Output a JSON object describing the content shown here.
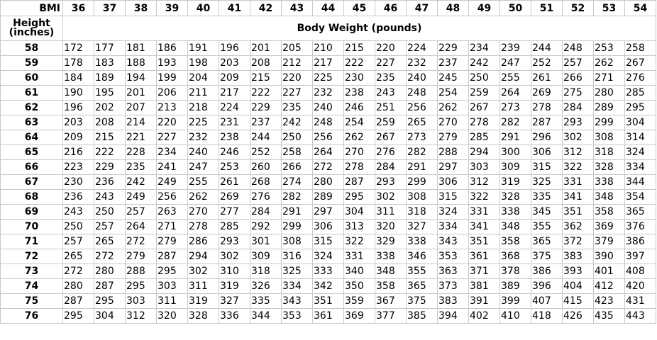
{
  "header": {
    "bmi_label": "BMI",
    "height_label_line1": "Height",
    "height_label_line2": "(inches)",
    "weight_label": "Body Weight (pounds)",
    "bmi_values": [
      "36",
      "37",
      "38",
      "39",
      "40",
      "41",
      "42",
      "43",
      "44",
      "45",
      "46",
      "47",
      "48",
      "49",
      "50",
      "51",
      "52",
      "53",
      "54"
    ]
  },
  "rows": [
    {
      "height": "58",
      "weights": [
        "172",
        "177",
        "181",
        "186",
        "191",
        "196",
        "201",
        "205",
        "210",
        "215",
        "220",
        "224",
        "229",
        "234",
        "239",
        "244",
        "248",
        "253",
        "258"
      ]
    },
    {
      "height": "59",
      "weights": [
        "178",
        "183",
        "188",
        "193",
        "198",
        "203",
        "208",
        "212",
        "217",
        "222",
        "227",
        "232",
        "237",
        "242",
        "247",
        "252",
        "257",
        "262",
        "267"
      ]
    },
    {
      "height": "60",
      "weights": [
        "184",
        "189",
        "194",
        "199",
        "204",
        "209",
        "215",
        "220",
        "225",
        "230",
        "235",
        "240",
        "245",
        "250",
        "255",
        "261",
        "266",
        "271",
        "276"
      ]
    },
    {
      "height": "61",
      "weights": [
        "190",
        "195",
        "201",
        "206",
        "211",
        "217",
        "222",
        "227",
        "232",
        "238",
        "243",
        "248",
        "254",
        "259",
        "264",
        "269",
        "275",
        "280",
        "285"
      ]
    },
    {
      "height": "62",
      "weights": [
        "196",
        "202",
        "207",
        "213",
        "218",
        "224",
        "229",
        "235",
        "240",
        "246",
        "251",
        "256",
        "262",
        "267",
        "273",
        "278",
        "284",
        "289",
        "295"
      ]
    },
    {
      "height": "63",
      "weights": [
        "203",
        "208",
        "214",
        "220",
        "225",
        "231",
        "237",
        "242",
        "248",
        "254",
        "259",
        "265",
        "270",
        "278",
        "282",
        "287",
        "293",
        "299",
        "304"
      ]
    },
    {
      "height": "64",
      "weights": [
        "209",
        "215",
        "221",
        "227",
        "232",
        "238",
        "244",
        "250",
        "256",
        "262",
        "267",
        "273",
        "279",
        "285",
        "291",
        "296",
        "302",
        "308",
        "314"
      ]
    },
    {
      "height": "65",
      "weights": [
        "216",
        "222",
        "228",
        "234",
        "240",
        "246",
        "252",
        "258",
        "264",
        "270",
        "276",
        "282",
        "288",
        "294",
        "300",
        "306",
        "312",
        "318",
        "324"
      ]
    },
    {
      "height": "66",
      "weights": [
        "223",
        "229",
        "235",
        "241",
        "247",
        "253",
        "260",
        "266",
        "272",
        "278",
        "284",
        "291",
        "297",
        "303",
        "309",
        "315",
        "322",
        "328",
        "334"
      ]
    },
    {
      "height": "67",
      "weights": [
        "230",
        "236",
        "242",
        "249",
        "255",
        "261",
        "268",
        "274",
        "280",
        "287",
        "293",
        "299",
        "306",
        "312",
        "319",
        "325",
        "331",
        "338",
        "344"
      ]
    },
    {
      "height": "68",
      "weights": [
        "236",
        "243",
        "249",
        "256",
        "262",
        "269",
        "276",
        "282",
        "289",
        "295",
        "302",
        "308",
        "315",
        "322",
        "328",
        "335",
        "341",
        "348",
        "354"
      ]
    },
    {
      "height": "69",
      "weights": [
        "243",
        "250",
        "257",
        "263",
        "270",
        "277",
        "284",
        "291",
        "297",
        "304",
        "311",
        "318",
        "324",
        "331",
        "338",
        "345",
        "351",
        "358",
        "365"
      ]
    },
    {
      "height": "70",
      "weights": [
        "250",
        "257",
        "264",
        "271",
        "278",
        "285",
        "292",
        "299",
        "306",
        "313",
        "320",
        "327",
        "334",
        "341",
        "348",
        "355",
        "362",
        "369",
        "376"
      ]
    },
    {
      "height": "71",
      "weights": [
        "257",
        "265",
        "272",
        "279",
        "286",
        "293",
        "301",
        "308",
        "315",
        "322",
        "329",
        "338",
        "343",
        "351",
        "358",
        "365",
        "372",
        "379",
        "386"
      ]
    },
    {
      "height": "72",
      "weights": [
        "265",
        "272",
        "279",
        "287",
        "294",
        "302",
        "309",
        "316",
        "324",
        "331",
        "338",
        "346",
        "353",
        "361",
        "368",
        "375",
        "383",
        "390",
        "397"
      ]
    },
    {
      "height": "73",
      "weights": [
        "272",
        "280",
        "288",
        "295",
        "302",
        "310",
        "318",
        "325",
        "333",
        "340",
        "348",
        "355",
        "363",
        "371",
        "378",
        "386",
        "393",
        "401",
        "408"
      ]
    },
    {
      "height": "74",
      "weights": [
        "280",
        "287",
        "295",
        "303",
        "311",
        "319",
        "326",
        "334",
        "342",
        "350",
        "358",
        "365",
        "373",
        "381",
        "389",
        "396",
        "404",
        "412",
        "420"
      ]
    },
    {
      "height": "75",
      "weights": [
        "287",
        "295",
        "303",
        "311",
        "319",
        "327",
        "335",
        "343",
        "351",
        "359",
        "367",
        "375",
        "383",
        "391",
        "399",
        "407",
        "415",
        "423",
        "431"
      ]
    },
    {
      "height": "76",
      "weights": [
        "295",
        "304",
        "312",
        "320",
        "328",
        "336",
        "344",
        "353",
        "361",
        "369",
        "377",
        "385",
        "394",
        "402",
        "410",
        "418",
        "426",
        "435",
        "443"
      ]
    }
  ]
}
